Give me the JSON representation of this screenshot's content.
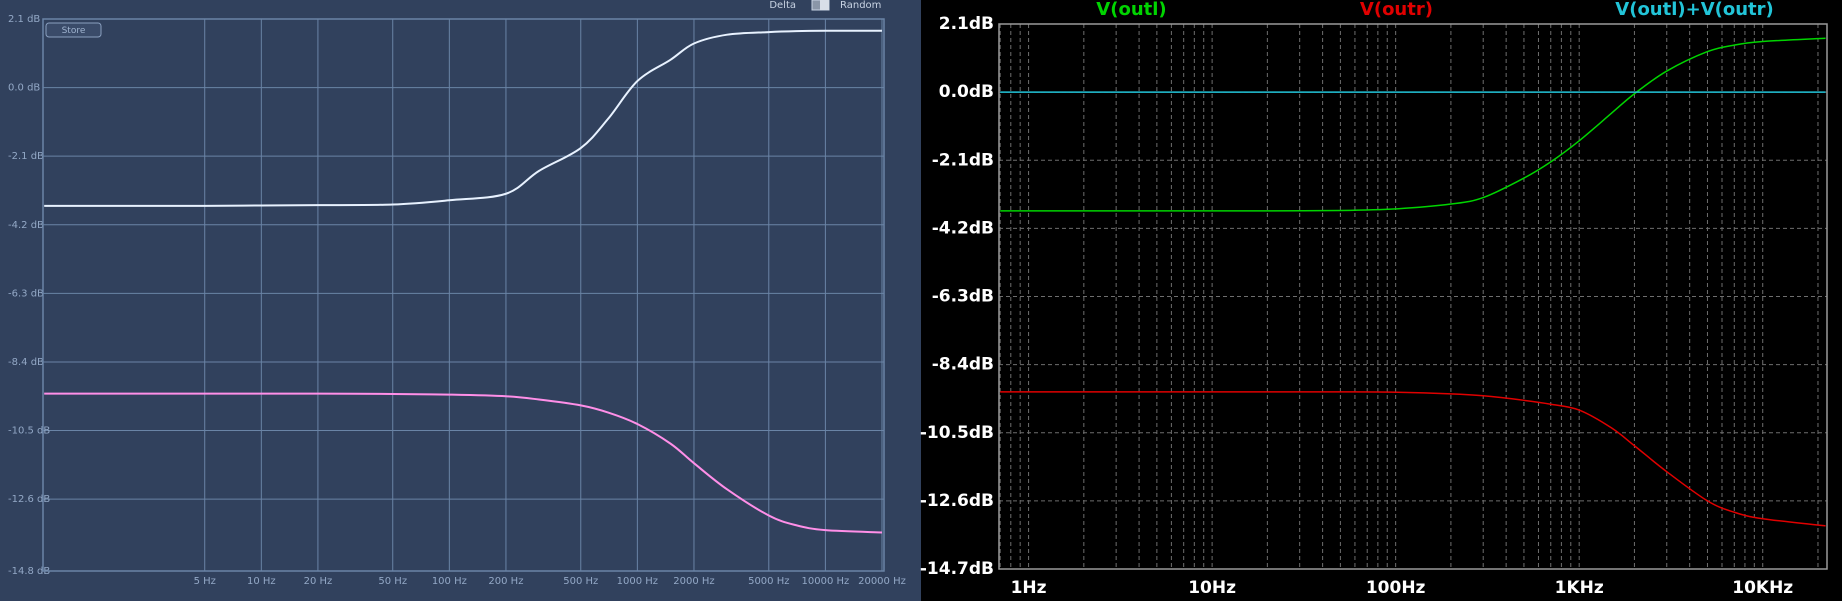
{
  "controls": {
    "store": "Store",
    "delta": "Delta",
    "random": "Random"
  },
  "chart_data": [
    {
      "type": "line",
      "xscale": "log",
      "grid": true,
      "x": [
        0.7,
        1,
        2,
        5,
        10,
        20,
        50,
        100,
        200,
        300,
        500,
        700,
        1000,
        1500,
        2000,
        3000,
        5000,
        7000,
        10000,
        20000
      ],
      "series": [
        {
          "color": "#e8f2ff",
          "values": [
            -3.62,
            -3.62,
            -3.62,
            -3.62,
            -3.61,
            -3.6,
            -3.58,
            -3.45,
            -3.25,
            -2.55,
            -1.85,
            -0.95,
            0.2,
            0.85,
            1.35,
            1.62,
            1.7,
            1.73,
            1.74,
            1.74
          ]
        },
        {
          "color": "#ff8fe8",
          "values": [
            -9.37,
            -9.37,
            -9.37,
            -9.37,
            -9.37,
            -9.37,
            -9.38,
            -9.4,
            -9.45,
            -9.55,
            -9.73,
            -9.95,
            -10.3,
            -10.9,
            -11.5,
            -12.3,
            -13.1,
            -13.4,
            -13.55,
            -13.62
          ]
        }
      ],
      "xlim": [
        0.69,
        20500
      ],
      "xticks": [
        {
          "value": 5,
          "label": "5 Hz"
        },
        {
          "value": 10,
          "label": "10 Hz"
        },
        {
          "value": 20,
          "label": "20 Hz"
        },
        {
          "value": 50,
          "label": "50 Hz"
        },
        {
          "value": 100,
          "label": "100 Hz"
        },
        {
          "value": 200,
          "label": "200 Hz"
        },
        {
          "value": 500,
          "label": "500 Hz"
        },
        {
          "value": 1000,
          "label": "1000 Hz"
        },
        {
          "value": 2000,
          "label": "2000 Hz"
        },
        {
          "value": 5000,
          "label": "5000 Hz"
        },
        {
          "value": 10000,
          "label": "10000 Hz"
        },
        {
          "value": 20000,
          "label": "20000 Hz"
        }
      ],
      "ylim": [
        -14.8,
        2.1
      ],
      "yticks": [
        {
          "value": 2.1,
          "label": "2.1 dB"
        },
        {
          "value": 0,
          "label": "0.0 dB"
        },
        {
          "value": -2.1,
          "label": "-2.1 dB"
        },
        {
          "value": -4.2,
          "label": "-4.2 dB"
        },
        {
          "value": -6.3,
          "label": "-6.3 dB"
        },
        {
          "value": -8.4,
          "label": "-8.4 dB"
        },
        {
          "value": -10.5,
          "label": "-10.5 dB"
        },
        {
          "value": -12.6,
          "label": "-12.6 dB"
        },
        {
          "value": -14.8,
          "label": "-14.8 dB"
        }
      ]
    },
    {
      "type": "line",
      "xscale": "log",
      "grid": true,
      "legend": "top",
      "x": [
        0.7,
        1,
        2,
        5,
        10,
        20,
        50,
        100,
        200,
        300,
        500,
        700,
        1000,
        1500,
        2000,
        3000,
        5000,
        7000,
        10000,
        22000
      ],
      "series": [
        {
          "name": "V(outl)",
          "color": "#00d400",
          "values": [
            -3.66,
            -3.66,
            -3.66,
            -3.66,
            -3.66,
            -3.66,
            -3.65,
            -3.6,
            -3.45,
            -3.25,
            -2.65,
            -2.15,
            -1.5,
            -0.65,
            -0.05,
            0.65,
            1.25,
            1.45,
            1.56,
            1.66
          ]
        },
        {
          "name": "V(outr)",
          "color": "#e00000",
          "values": [
            -9.24,
            -9.24,
            -9.24,
            -9.24,
            -9.24,
            -9.24,
            -9.24,
            -9.25,
            -9.3,
            -9.36,
            -9.5,
            -9.62,
            -9.8,
            -10.35,
            -10.9,
            -11.7,
            -12.6,
            -12.95,
            -13.15,
            -13.37
          ]
        },
        {
          "name": "V(outl)+V(outr)",
          "color": "#22c4d8",
          "values": [
            0,
            0,
            0,
            0,
            0,
            0,
            0,
            0,
            0,
            0,
            0,
            0,
            0,
            0,
            0,
            0,
            0,
            0,
            0,
            0
          ]
        }
      ],
      "xlim": [
        0.69,
        22400
      ],
      "xticks": [
        {
          "value": 1,
          "label": "1Hz"
        },
        {
          "value": 10,
          "label": "10Hz"
        },
        {
          "value": 100,
          "label": "100Hz"
        },
        {
          "value": 1000,
          "label": "1KHz"
        },
        {
          "value": 10000,
          "label": "10KHz"
        }
      ],
      "minor_xticks": [
        0.7,
        0.8,
        0.9,
        2,
        3,
        4,
        5,
        6,
        7,
        8,
        9,
        20,
        30,
        40,
        50,
        60,
        70,
        80,
        90,
        200,
        300,
        400,
        500,
        600,
        700,
        800,
        900,
        2000,
        3000,
        4000,
        5000,
        6000,
        7000,
        8000,
        9000,
        20000
      ],
      "ylim": [
        -14.7,
        2.1
      ],
      "yticks": [
        {
          "value": 2.1,
          "label": "2.1dB"
        },
        {
          "value": 0,
          "label": "0.0dB"
        },
        {
          "value": -2.1,
          "label": "-2.1dB"
        },
        {
          "value": -4.2,
          "label": "-4.2dB"
        },
        {
          "value": -6.3,
          "label": "-6.3dB"
        },
        {
          "value": -8.4,
          "label": "-8.4dB"
        },
        {
          "value": -10.5,
          "label": "-10.5dB"
        },
        {
          "value": -12.6,
          "label": "-12.6dB"
        },
        {
          "value": -14.7,
          "label": "-14.7dB"
        }
      ]
    }
  ]
}
